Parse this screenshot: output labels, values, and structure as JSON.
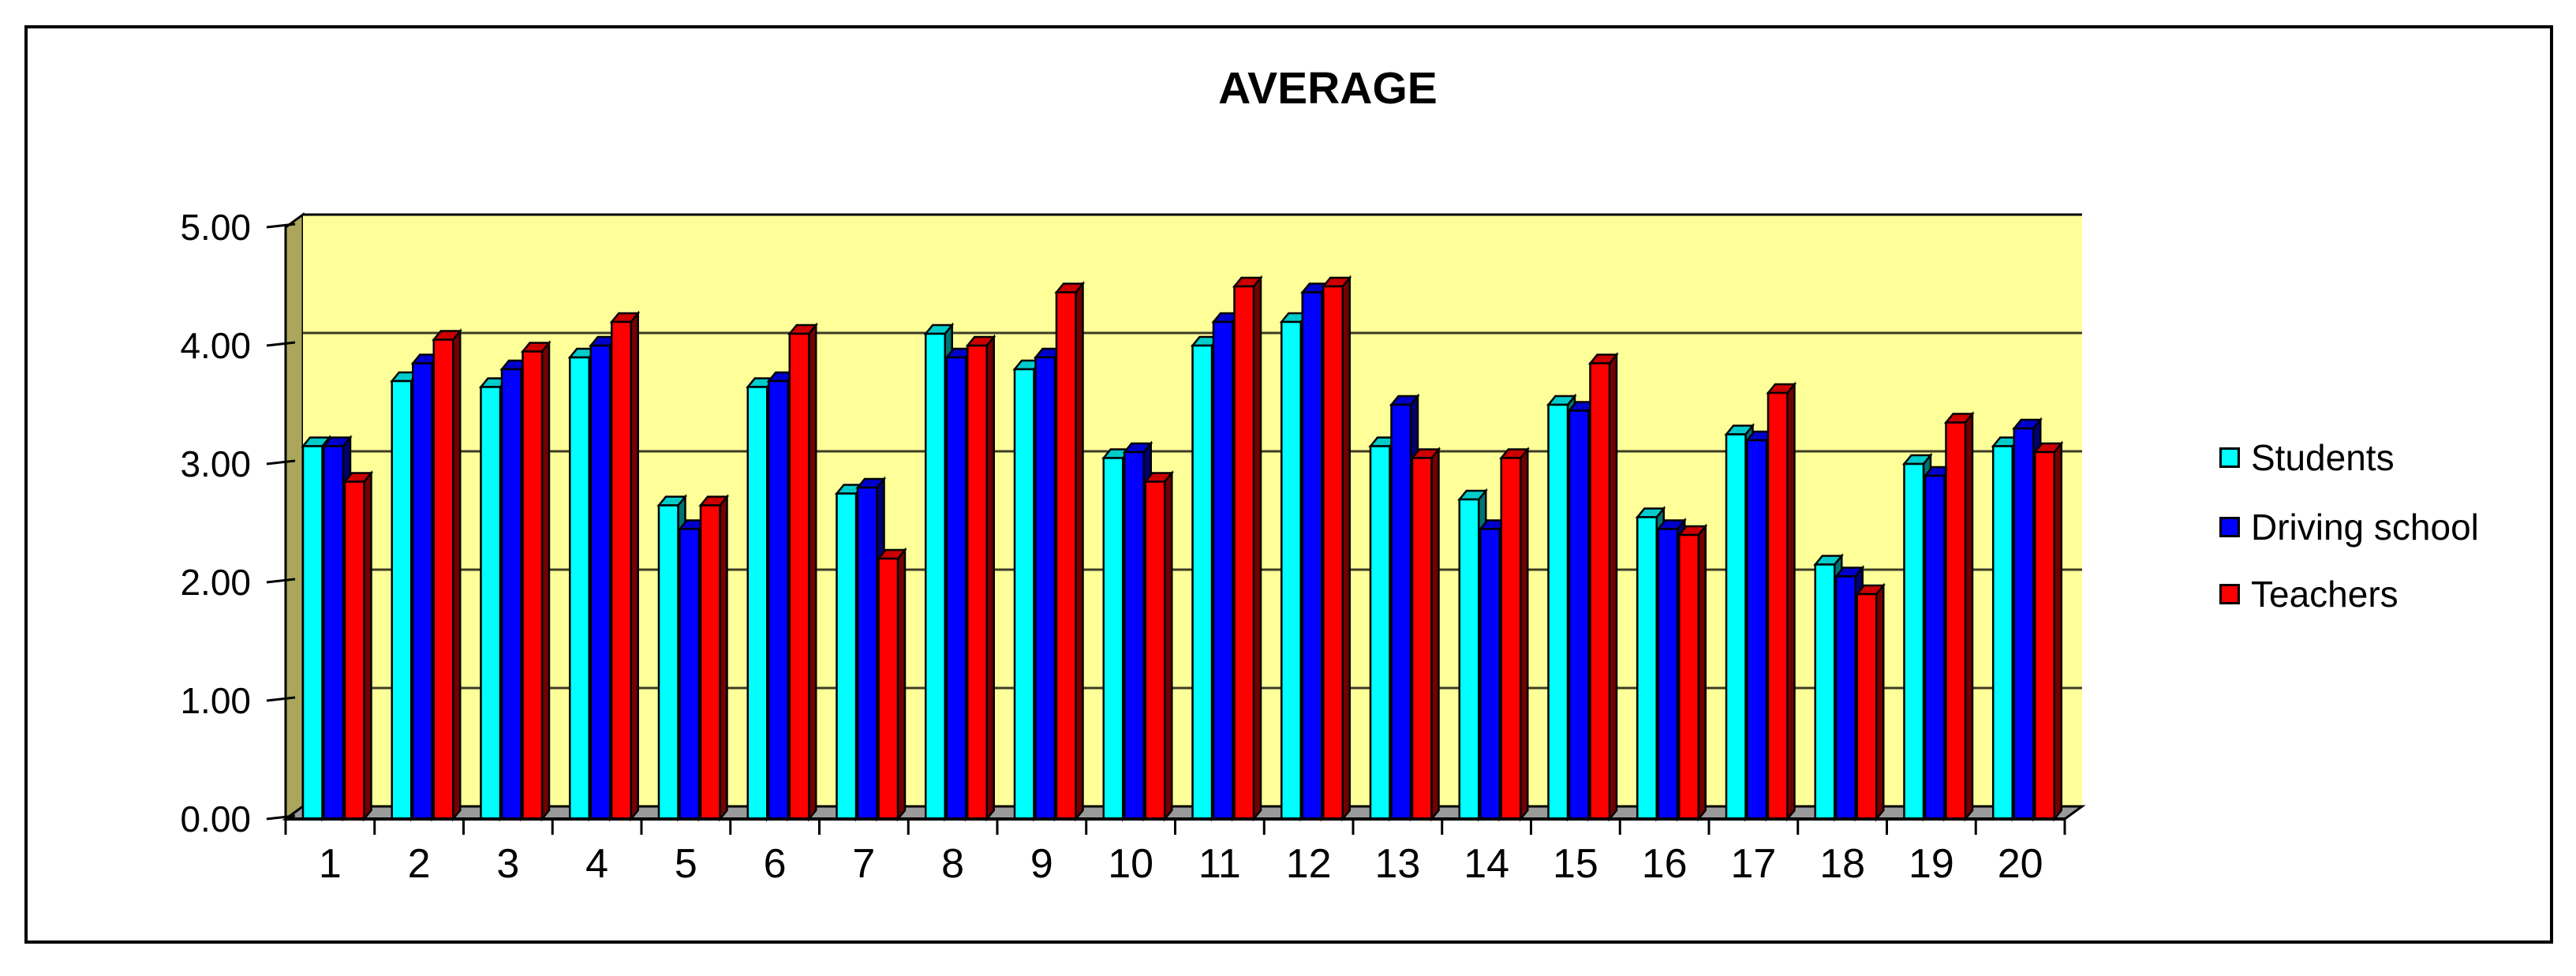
{
  "title": "AVERAGE",
  "legend": {
    "items": [
      {
        "label": "Students",
        "color": "#00FFFF"
      },
      {
        "label": "Driving school",
        "color": "#0000FF"
      },
      {
        "label": "Teachers",
        "color": "#FF0000"
      }
    ]
  },
  "chart_data": {
    "type": "bar",
    "title": "AVERAGE",
    "categories": [
      "1",
      "2",
      "3",
      "4",
      "5",
      "6",
      "7",
      "8",
      "9",
      "10",
      "11",
      "12",
      "13",
      "14",
      "15",
      "16",
      "17",
      "18",
      "19",
      "20"
    ],
    "series": [
      {
        "name": "Students",
        "color": "#00FFFF",
        "values": [
          3.15,
          3.7,
          3.65,
          3.9,
          2.65,
          3.65,
          2.75,
          4.1,
          3.8,
          3.05,
          4.0,
          4.2,
          3.15,
          2.7,
          3.5,
          2.55,
          3.25,
          2.15,
          3.0,
          3.15
        ]
      },
      {
        "name": "Driving school",
        "color": "#0000FF",
        "values": [
          3.15,
          3.85,
          3.8,
          4.0,
          2.45,
          3.7,
          2.8,
          3.9,
          3.9,
          3.1,
          4.2,
          4.45,
          3.5,
          2.45,
          3.45,
          2.45,
          3.2,
          2.05,
          2.9,
          3.3
        ]
      },
      {
        "name": "Teachers",
        "color": "#FF0000",
        "values": [
          2.85,
          4.05,
          3.95,
          4.2,
          2.65,
          4.1,
          2.2,
          4.0,
          4.45,
          2.85,
          4.5,
          4.5,
          3.05,
          3.05,
          3.85,
          2.4,
          3.6,
          1.9,
          3.35,
          3.1
        ]
      }
    ],
    "ylim": [
      0,
      5
    ],
    "ytick_step": 1,
    "ytick_labels": [
      "0.00",
      "1.00",
      "2.00",
      "3.00",
      "4.00",
      "5.00"
    ],
    "grid": true,
    "legend_position": "right",
    "wall_color": "#FFFF99",
    "side_wall_color": "#ABA65C",
    "floor_color": "#9A9A9A",
    "grid_color": "#3C3C28",
    "outline_color": "#000000"
  }
}
